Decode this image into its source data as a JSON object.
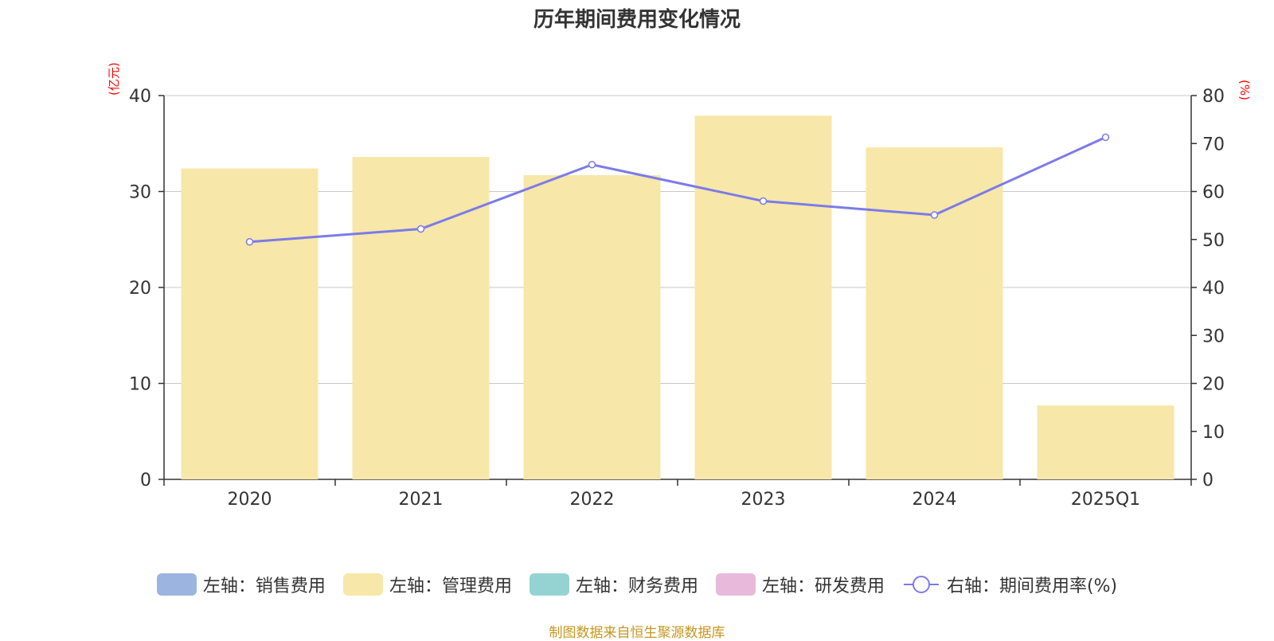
{
  "title": "历年期间费用变化情况",
  "source": "制图数据来自恒生聚源数据库",
  "colors": {
    "sales": "#9bb5e0",
    "admin": "#f7e7a8",
    "finance": "#95d3d3",
    "rd": "#e8b9da",
    "rate": "#7b7bea",
    "axis_unit": "#ff0000",
    "source": "#c8961e"
  },
  "chart_data": {
    "type": "bar",
    "categories": [
      "2020",
      "2021",
      "2022",
      "2023",
      "2024",
      "2025Q1"
    ],
    "series": [
      {
        "name": "左轴：销售费用",
        "axis": "left",
        "type": "bar",
        "values": [
          null,
          null,
          null,
          null,
          null,
          null
        ]
      },
      {
        "name": "左轴：管理费用",
        "axis": "left",
        "type": "bar",
        "values": [
          32.4,
          33.6,
          31.7,
          37.9,
          34.6,
          7.7
        ]
      },
      {
        "name": "左轴：财务费用",
        "axis": "left",
        "type": "bar",
        "values": [
          null,
          null,
          null,
          null,
          null,
          null
        ]
      },
      {
        "name": "左轴：研发费用",
        "axis": "left",
        "type": "bar",
        "values": [
          null,
          null,
          null,
          null,
          null,
          null
        ]
      },
      {
        "name": "右轴：期间费用率(%)",
        "axis": "right",
        "type": "line",
        "values": [
          49.5,
          52.2,
          65.6,
          58.0,
          55.1,
          71.3
        ]
      }
    ],
    "y_left": {
      "label": "(亿元)",
      "ylim": [
        0,
        40
      ],
      "ticks": [
        0,
        10,
        20,
        30,
        40
      ]
    },
    "y_right": {
      "label": "(%)",
      "ylim": [
        0,
        80
      ],
      "ticks": [
        0,
        10,
        20,
        30,
        40,
        50,
        60,
        70,
        80
      ]
    },
    "grid": true,
    "legend_position": "bottom"
  }
}
